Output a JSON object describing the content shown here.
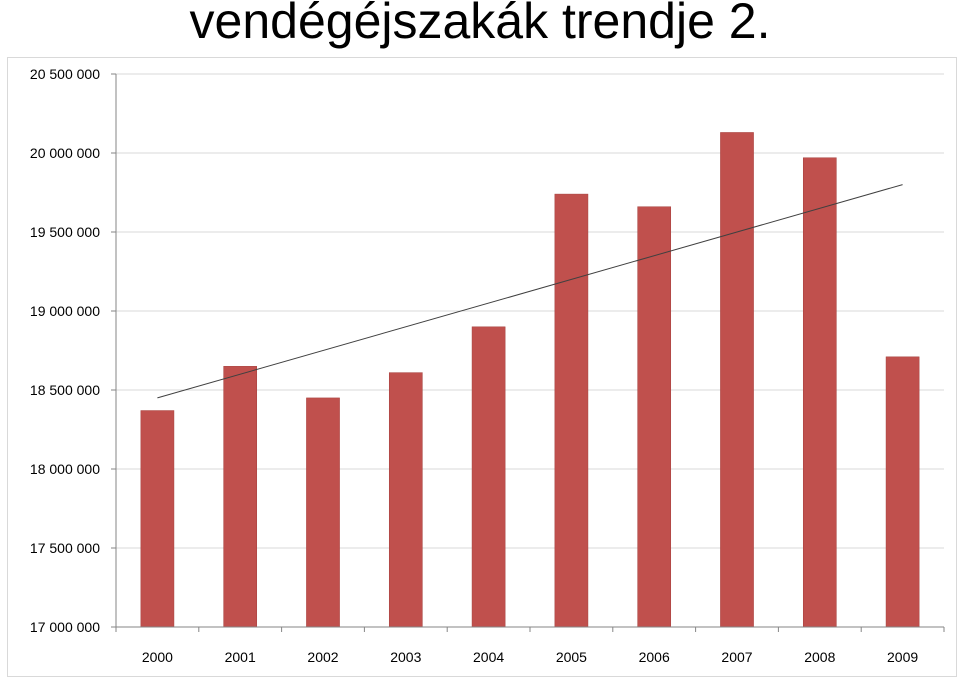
{
  "slide": {
    "title": "vendégéjszakák trendje 2."
  },
  "chart_data": {
    "type": "bar",
    "title": "",
    "xlabel": "",
    "ylabel": "",
    "categories": [
      "2000",
      "2001",
      "2002",
      "2003",
      "2004",
      "2005",
      "2006",
      "2007",
      "2008",
      "2009"
    ],
    "values": [
      18370000,
      18650000,
      18450000,
      18610000,
      18900000,
      19740000,
      19660000,
      20130000,
      19970000,
      18710000
    ],
    "ylim": [
      17000000,
      20500000
    ],
    "yticks": [
      17000000,
      17500000,
      18000000,
      18500000,
      19000000,
      19500000,
      20000000,
      20500000
    ],
    "ytick_labels": [
      "17 000 000",
      "17 500 000",
      "18 000 000",
      "18 500 000",
      "19 000 000",
      "19 500 000",
      "20 000 000",
      "20 500 000"
    ],
    "trendline": {
      "type": "linear",
      "start": 18450000,
      "end": 19800000
    },
    "grid": true,
    "legend": "none",
    "colors": {
      "bar": "#c0504d",
      "bar_edge": "#a5403d",
      "grid": "#d9d9d9",
      "axis": "#868686",
      "trendline": "#404040"
    }
  }
}
